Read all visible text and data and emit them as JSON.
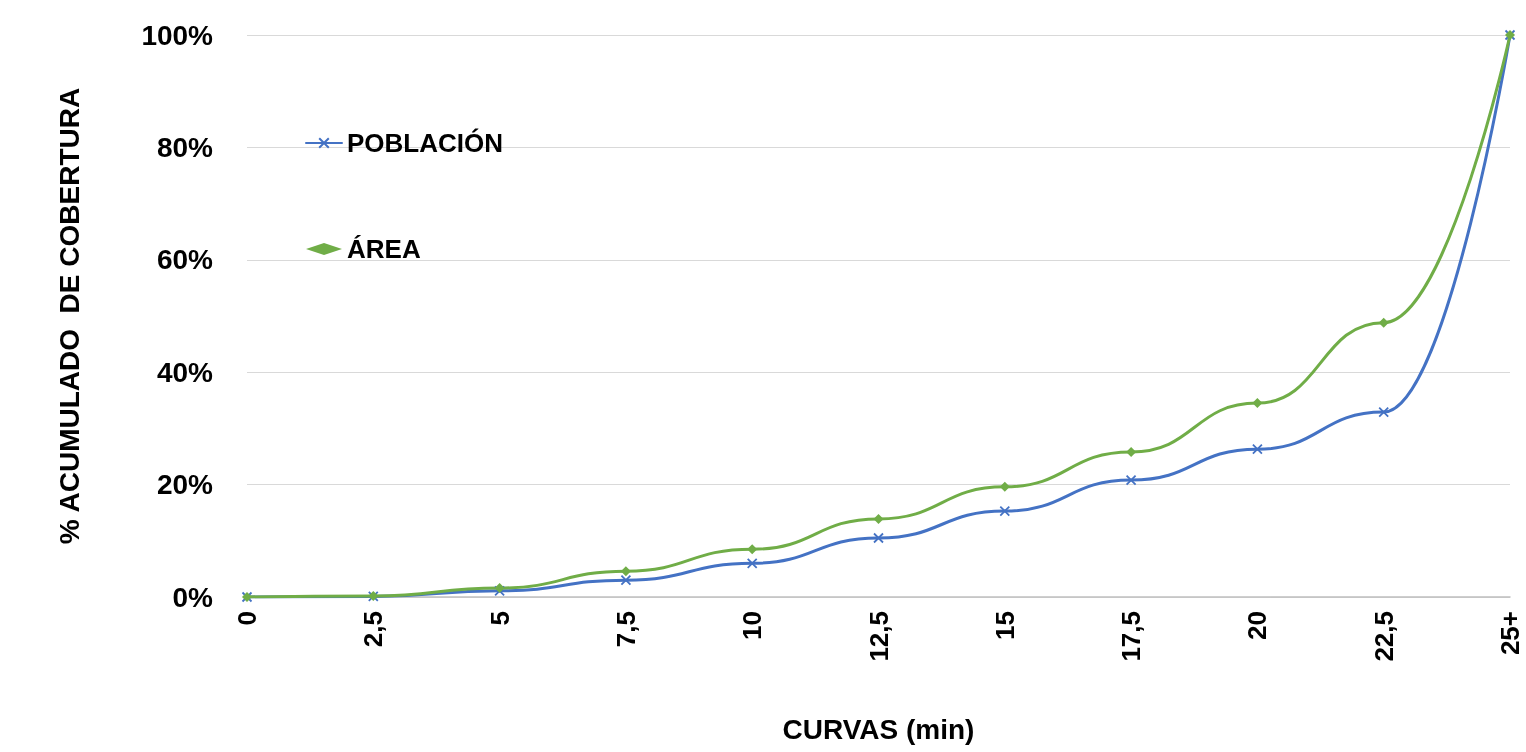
{
  "chart_data": {
    "type": "line",
    "xlabel": "CURVAS (min)",
    "ylabel": "% ACUMULADO  DE COBERTURA",
    "categories": [
      "0",
      "2,5",
      "5",
      "7,5",
      "10",
      "12,5",
      "15",
      "17,5",
      "20",
      "22,5",
      "25+"
    ],
    "series": [
      {
        "name": "POBLACIÓN",
        "color": "#4472c4",
        "marker": "cross",
        "values": [
          0,
          0.1,
          1.1,
          3.0,
          6.0,
          10.5,
          15.3,
          20.8,
          26.3,
          32.9,
          100
        ]
      },
      {
        "name": "ÁREA",
        "color": "#70ad47",
        "marker": "diamond",
        "values": [
          0,
          0.2,
          1.6,
          4.6,
          8.5,
          13.9,
          19.6,
          25.8,
          34.5,
          48.8,
          100
        ]
      }
    ],
    "ylim": [
      0,
      100
    ],
    "yticks": [
      {
        "value": 0,
        "label": "0%"
      },
      {
        "value": 20,
        "label": "20%"
      },
      {
        "value": 40,
        "label": "40%"
      },
      {
        "value": 60,
        "label": "60%"
      },
      {
        "value": 80,
        "label": "80%"
      },
      {
        "value": 100,
        "label": "100%"
      }
    ],
    "grid": "y",
    "legend": "top left",
    "line_style": "solid"
  }
}
